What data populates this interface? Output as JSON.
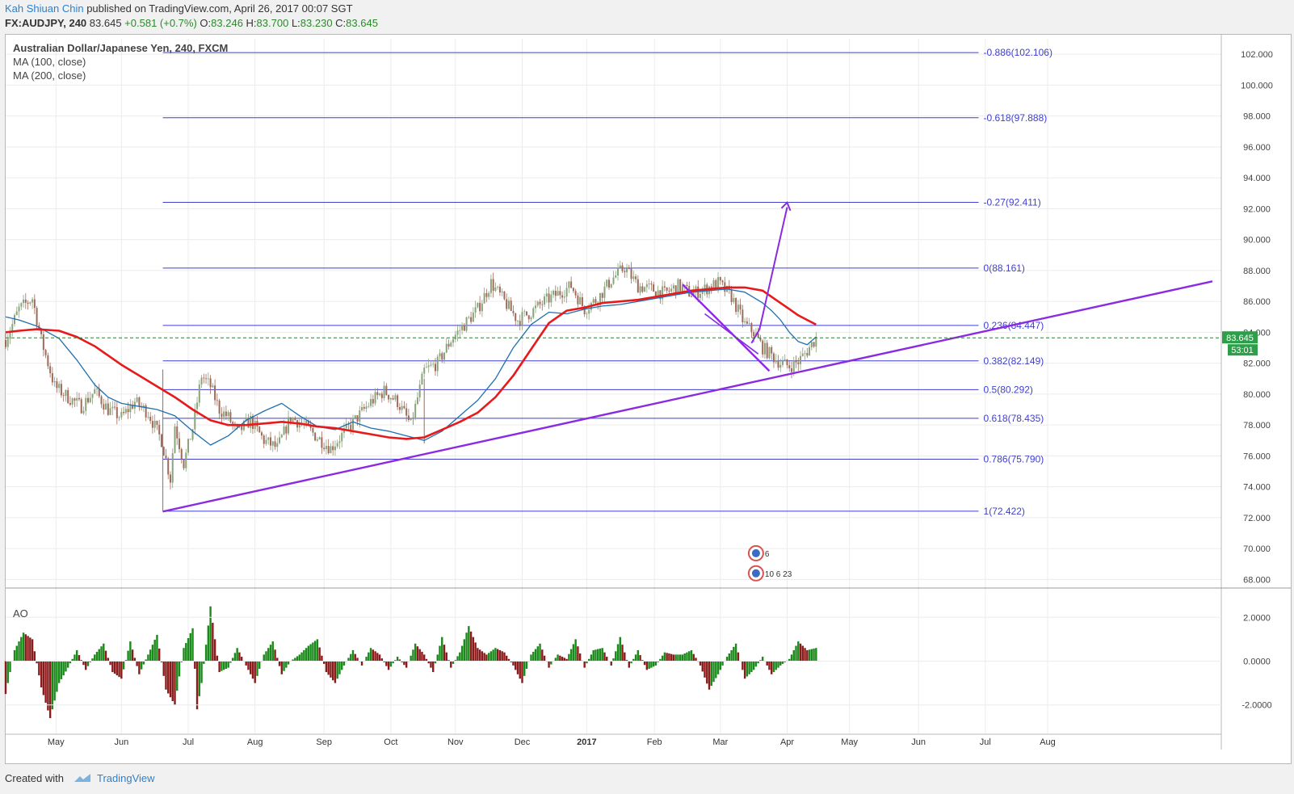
{
  "header": {
    "author": "Kah Shiuan Chin",
    "published": "published on TradingView.com, April 26, 2017 00:07 SGT",
    "symbol": "FX:AUDJPY, 240",
    "last": "83.645",
    "change": "+0.581 (+0.7%)",
    "o_label": "O:",
    "o": "83.246",
    "h_label": "H:",
    "h": "83.700",
    "l_label": "L:",
    "l": "83.230",
    "c_label": "C:",
    "c": "83.645"
  },
  "legend": {
    "title": "Australian Dollar/Japanese Yen, 240, FXCM",
    "ma100": "MA (100, close)",
    "ma200": "MA (200, close)",
    "ao": "AO"
  },
  "footer": {
    "created": "Created with",
    "brand": "TradingView"
  },
  "colors": {
    "fib": "#3f3fd0",
    "ma100": "#1f6fb0",
    "ma200": "#e8191b",
    "trend": "#8a2be2",
    "candle_up": "#8aa37a",
    "candle_down": "#9e6a5a",
    "ao_up": "#1a8a1a",
    "ao_down": "#8b1a1a",
    "last_line": "#2e7d32",
    "price_badge": "#2e9e4a"
  },
  "chart_data": [
    {
      "type": "line",
      "title": "Australian Dollar/Japanese Yen, 240, FXCM",
      "x_axis": [
        "May",
        "Jun",
        "Jul",
        "Aug",
        "Sep",
        "Oct",
        "Nov",
        "Dec",
        "2017",
        "Feb",
        "Mar",
        "Apr",
        "May",
        "Jun",
        "Jul",
        "Aug"
      ],
      "y_axis": {
        "ylim": [
          67.5,
          103.0
        ],
        "ticks": [
          "68.000",
          "70.000",
          "72.000",
          "74.000",
          "76.000",
          "78.000",
          "80.000",
          "82.000",
          "84.000",
          "86.000",
          "88.000",
          "90.000",
          "92.000",
          "94.000",
          "96.000",
          "98.000",
          "100.000",
          "102.000"
        ]
      },
      "last_price": "83.645",
      "countdown": "53:01",
      "fib_levels": [
        {
          "label": "-0.886(102.106)",
          "value": 102.106
        },
        {
          "label": "-0.618(97.888)",
          "value": 97.888
        },
        {
          "label": "-0.27(92.411)",
          "value": 92.411
        },
        {
          "label": "0(88.161)",
          "value": 88.161
        },
        {
          "label": "0.236(84.447)",
          "value": 84.447
        },
        {
          "label": "0.382(82.149)",
          "value": 82.149
        },
        {
          "label": "0.5(80.292)",
          "value": 80.292
        },
        {
          "label": "0.618(78.435)",
          "value": 78.435
        },
        {
          "label": "0.786(75.790)",
          "value": 75.79
        },
        {
          "label": "1(72.422)",
          "value": 72.422
        }
      ],
      "series": [
        {
          "name": "MA (100, close)",
          "x": [
            0,
            3,
            7,
            12,
            16,
            20,
            23,
            26,
            30,
            34,
            38,
            42,
            46,
            50,
            54,
            58,
            62,
            66,
            70,
            74,
            78,
            82,
            86,
            90,
            94,
            98,
            102,
            106,
            110,
            114,
            118,
            122,
            126,
            130,
            134,
            138,
            142,
            146,
            150,
            154,
            158,
            162,
            166,
            170,
            172,
            174,
            176,
            178,
            180,
            182
          ],
          "values": [
            85.0,
            84.8,
            84.4,
            83.6,
            82.2,
            80.6,
            79.8,
            79.4,
            79.2,
            79.0,
            78.6,
            77.6,
            76.7,
            77.3,
            78.3,
            78.9,
            79.4,
            78.6,
            77.9,
            77.7,
            78.2,
            77.8,
            77.6,
            77.3,
            77.0,
            77.6,
            78.6,
            79.6,
            81.0,
            83.0,
            84.5,
            85.3,
            85.2,
            85.5,
            85.7,
            85.8,
            86.0,
            86.2,
            86.4,
            86.6,
            86.7,
            86.8,
            86.6,
            85.9,
            85.4,
            84.8,
            84.0,
            83.4,
            83.2,
            83.7
          ]
        },
        {
          "name": "MA (200, close)",
          "x": [
            0,
            3,
            7,
            12,
            16,
            20,
            23,
            26,
            30,
            34,
            38,
            42,
            46,
            50,
            54,
            58,
            62,
            66,
            70,
            74,
            78,
            82,
            86,
            90,
            94,
            98,
            102,
            106,
            110,
            114,
            118,
            122,
            126,
            130,
            134,
            138,
            142,
            146,
            150,
            154,
            158,
            162,
            166,
            170,
            172,
            174,
            176,
            178,
            180,
            182
          ],
          "values": [
            84.0,
            84.1,
            84.2,
            84.1,
            83.7,
            83.1,
            82.5,
            81.9,
            81.2,
            80.5,
            79.8,
            79.0,
            78.3,
            78.0,
            78.0,
            78.1,
            78.2,
            78.1,
            77.9,
            77.8,
            77.6,
            77.4,
            77.2,
            77.1,
            77.2,
            77.7,
            78.2,
            78.8,
            79.8,
            81.2,
            82.9,
            84.6,
            85.4,
            85.6,
            85.9,
            86.0,
            86.1,
            86.3,
            86.5,
            86.7,
            86.8,
            86.9,
            86.9,
            86.7,
            86.3,
            85.9,
            85.5,
            85.1,
            84.8,
            84.5
          ]
        },
        {
          "name": "Price",
          "x": [
            0,
            3,
            6,
            8,
            11,
            14,
            17,
            20,
            23,
            26,
            29,
            32,
            35,
            37,
            38,
            40,
            42,
            44,
            46,
            48,
            50,
            52,
            55,
            58,
            61,
            64,
            67,
            70,
            73,
            76,
            79,
            82,
            85,
            88,
            91,
            94,
            97,
            100,
            103,
            106,
            109,
            112,
            115,
            118,
            121,
            124,
            127,
            130,
            133,
            136,
            139,
            142,
            145,
            148,
            151,
            154,
            157,
            160,
            163,
            166,
            168,
            170,
            172,
            174,
            176,
            178,
            180,
            182
          ],
          "values": [
            83.5,
            85.5,
            86.2,
            83.5,
            80.5,
            79.8,
            79.2,
            80.2,
            79.0,
            78.5,
            79.5,
            78.8,
            77.0,
            74.5,
            78.0,
            75.5,
            77.8,
            81.2,
            80.5,
            79.0,
            78.5,
            77.5,
            78.3,
            77.0,
            76.5,
            78.5,
            78.0,
            77.2,
            76.5,
            77.5,
            78.5,
            79.5,
            80.2,
            79.5,
            78.0,
            81.5,
            82.0,
            83.5,
            84.5,
            85.5,
            87.2,
            86.0,
            84.8,
            85.3,
            86.0,
            86.5,
            87.0,
            85.5,
            86.2,
            87.4,
            88.2,
            87.0,
            86.8,
            86.5,
            87.0,
            86.5,
            86.8,
            87.2,
            86.3,
            84.5,
            84.0,
            83.0,
            82.5,
            82.0,
            81.8,
            82.1,
            82.8,
            83.645
          ]
        },
        {
          "name": "AO",
          "x": [
            0,
            2,
            4,
            6,
            8,
            10,
            12,
            14,
            16,
            18,
            20,
            22,
            24,
            26,
            28,
            30,
            32,
            34,
            36,
            38,
            40,
            42,
            43,
            44,
            46,
            48,
            50,
            52,
            54,
            56,
            58,
            60,
            62,
            64,
            66,
            68,
            70,
            72,
            74,
            76,
            78,
            80,
            82,
            84,
            86,
            88,
            90,
            92,
            94,
            96,
            98,
            100,
            102,
            104,
            106,
            108,
            110,
            112,
            114,
            116,
            118,
            120,
            122,
            124,
            126,
            128,
            130,
            132,
            134,
            136,
            138,
            140,
            142,
            144,
            146,
            148,
            150,
            152,
            154,
            156,
            158,
            160,
            162,
            164,
            166,
            168,
            170,
            172,
            174,
            176,
            178,
            180,
            182
          ],
          "values": [
            -1.5,
            0.5,
            1.3,
            1.0,
            -1.2,
            -2.6,
            -1.0,
            -0.3,
            0.5,
            -0.4,
            0.3,
            0.8,
            -0.5,
            -0.8,
            0.9,
            -0.6,
            0.3,
            1.2,
            -1.3,
            -2.0,
            0.6,
            1.5,
            -2.2,
            -1.0,
            2.5,
            -0.5,
            -0.3,
            0.6,
            -0.2,
            -1.0,
            0.3,
            0.9,
            -0.6,
            0.0,
            0.3,
            0.7,
            1.0,
            -0.5,
            -1.0,
            -0.2,
            0.5,
            -0.2,
            0.6,
            0.3,
            -0.4,
            0.2,
            -0.3,
            0.8,
            0.3,
            -0.5,
            1.1,
            -0.3,
            0.4,
            1.6,
            0.6,
            0.3,
            0.6,
            0.4,
            -0.2,
            -1.0,
            0.3,
            0.8,
            -0.3,
            0.3,
            0.1,
            1.0,
            -0.3,
            0.5,
            0.6,
            -0.2,
            1.1,
            -0.3,
            0.5,
            -0.4,
            -0.2,
            0.4,
            0.3,
            0.3,
            0.5,
            -0.2,
            -1.3,
            -0.6,
            0.2,
            0.8,
            -0.8,
            -0.4,
            0.2,
            -0.6,
            -0.2,
            0.1,
            0.9,
            0.5,
            0.6
          ]
        }
      ],
      "ao_axis": {
        "ylim": [
          -3.3,
          3.3
        ],
        "ticks": [
          "2.0000",
          "0.0000",
          "-2.0000"
        ]
      },
      "events": [
        "6",
        "10 6 23"
      ]
    }
  ]
}
